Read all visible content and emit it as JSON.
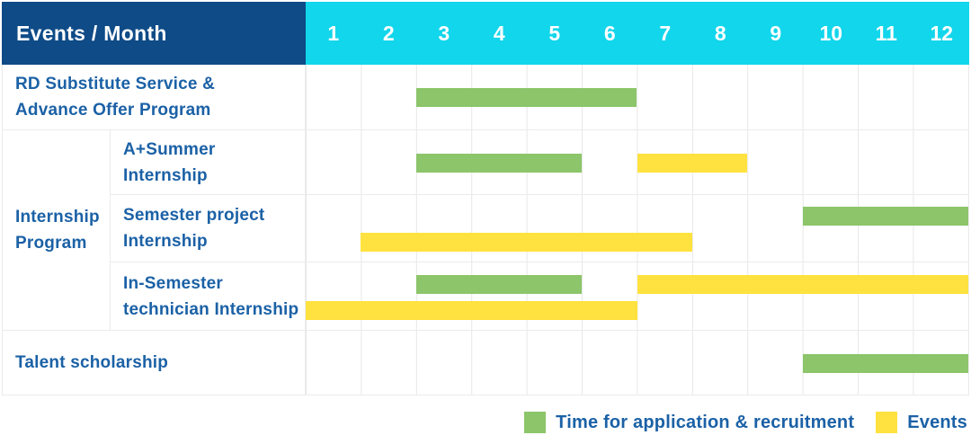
{
  "chart_data": {
    "type": "gantt",
    "title": "Events / Month",
    "months": [
      "1",
      "2",
      "3",
      "4",
      "5",
      "6",
      "7",
      "8",
      "9",
      "10",
      "11",
      "12"
    ],
    "x_axis_range": [
      1,
      12
    ],
    "group_label": "Internship\nProgram",
    "rows": [
      {
        "label": "RD Substitute Service &\nAdvance Offer Program",
        "group": null,
        "lanes": [
          [
            {
              "type": "application",
              "start": 3,
              "end": 6
            }
          ]
        ]
      },
      {
        "label": "A+Summer\nInternship",
        "group": "Internship Program",
        "lanes": [
          [
            {
              "type": "application",
              "start": 3,
              "end": 5
            },
            {
              "type": "events",
              "start": 7,
              "end": 8
            }
          ]
        ]
      },
      {
        "label": "Semester project\nInternship",
        "group": "Internship Program",
        "lanes": [
          [
            {
              "type": "application",
              "start": 10,
              "end": 12
            }
          ],
          [
            {
              "type": "events",
              "start": 2,
              "end": 7
            }
          ]
        ]
      },
      {
        "label": "In-Semester\ntechnician Internship",
        "group": "Internship Program",
        "lanes": [
          [
            {
              "type": "application",
              "start": 3,
              "end": 5
            },
            {
              "type": "events",
              "start": 7,
              "end": 12
            }
          ],
          [
            {
              "type": "events",
              "start": 1,
              "end": 6
            }
          ]
        ]
      },
      {
        "label": "Talent scholarship",
        "group": null,
        "lanes": [
          [
            {
              "type": "application",
              "start": 10,
              "end": 12
            }
          ]
        ]
      }
    ],
    "legend": [
      {
        "type": "application",
        "label": "Time for application & recruitment",
        "color": "#8CC56A"
      },
      {
        "type": "events",
        "label": "Events",
        "color": "#FFE23F"
      }
    ],
    "colors": {
      "header_title_bg": "#0E4B87",
      "header_months_bg": "#12D6EB",
      "header_text": "#FFFFFF",
      "label_text": "#1B61A6",
      "application_bar": "#8CC56A",
      "events_bar": "#FFE23F",
      "grid_line": "#E7E7E7"
    }
  }
}
